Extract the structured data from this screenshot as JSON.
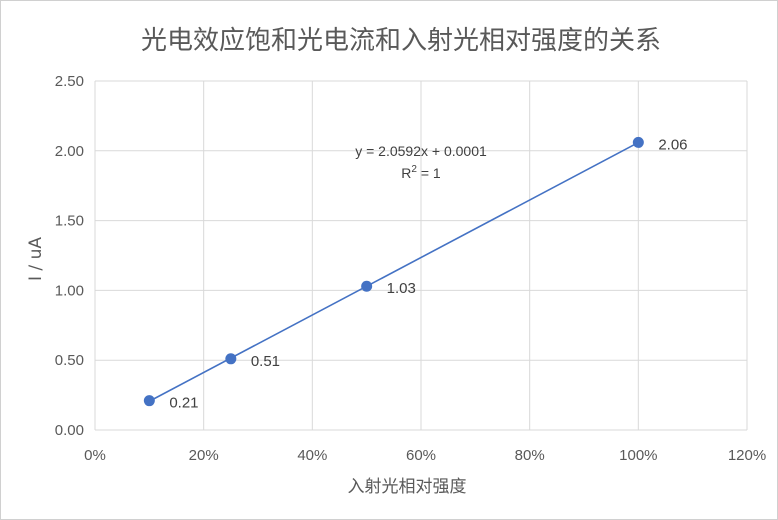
{
  "chart_data": {
    "type": "scatter",
    "title": "光电效应饱和光电流和入射光相对强度的关系",
    "xlabel": "入射光相对强度",
    "ylabel": "I / uA",
    "xlim": [
      0,
      1.2
    ],
    "ylim": [
      0,
      2.5
    ],
    "x_ticks": [
      "0%",
      "20%",
      "40%",
      "60%",
      "80%",
      "100%",
      "120%"
    ],
    "y_ticks": [
      "0.00",
      "0.50",
      "1.00",
      "1.50",
      "2.00",
      "2.50"
    ],
    "grid": true,
    "legend": "none",
    "series": [
      {
        "x": [
          0.1,
          0.25,
          0.5,
          1.0
        ],
        "y": [
          0.21,
          0.51,
          1.03,
          2.06
        ],
        "labels": [
          "0.21",
          "0.51",
          "1.03",
          "2.06"
        ],
        "color": "#4472C4"
      }
    ],
    "trendline": {
      "type": "linear",
      "equation": "y = 2.0592x + 0.0001",
      "r2_label": "R",
      "r2_sup": "2",
      "r2_value": " = 1",
      "slope": 2.0592,
      "intercept": 0.0001,
      "color": "#4472C4"
    }
  }
}
